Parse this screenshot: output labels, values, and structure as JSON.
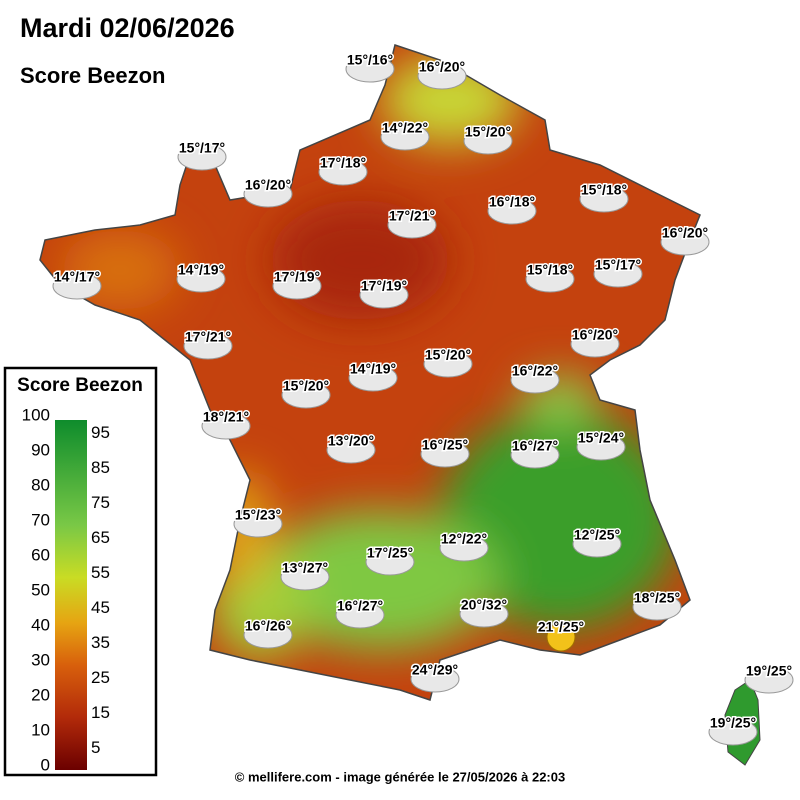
{
  "header": {
    "title": "Mardi 02/06/2026",
    "subtitle": "Score Beezon"
  },
  "legend": {
    "title": "Score Beezon",
    "scale": [
      0,
      100
    ],
    "ticks_left": [
      100,
      90,
      80,
      70,
      60,
      50,
      40,
      30,
      20,
      10,
      0
    ],
    "ticks_right": [
      95,
      85,
      75,
      65,
      55,
      45,
      35,
      25,
      15,
      5
    ]
  },
  "stations": [
    "15°/16°",
    "16°/20°",
    "14°/22°",
    "15°/20°",
    "15°/17°",
    "17°/18°",
    "16°/20°",
    "17°/21°",
    "16°/18°",
    "15°/18°",
    "16°/20°",
    "14°/17°",
    "14°/19°",
    "17°/19°",
    "17°/19°",
    "15°/18°",
    "15°/17°",
    "17°/21°",
    "16°/20°",
    "14°/19°",
    "15°/20°",
    "16°/22°",
    "15°/20°",
    "18°/21°",
    "13°/20°",
    "16°/25°",
    "16°/27°",
    "15°/24°",
    "15°/23°",
    "12°/22°",
    "12°/25°",
    "13°/27°",
    "17°/25°",
    "18°/25°",
    "16°/27°",
    "20°/32°",
    "21°/25°",
    "16°/26°",
    "24°/29°",
    "19°/25°",
    "19°/25°"
  ],
  "footer": "© mellifere.com - image générée le 27/05/2026 à 22:03"
}
